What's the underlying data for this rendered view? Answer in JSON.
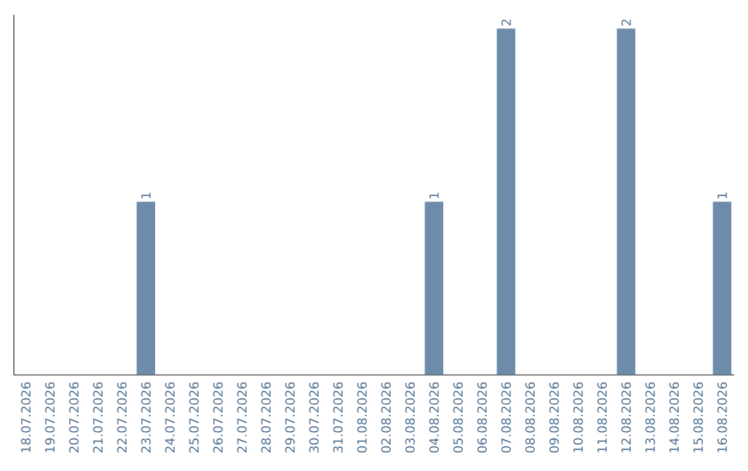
{
  "chart_data": {
    "type": "bar",
    "categories": [
      "18.07.2026",
      "19.07.2026",
      "20.07.2026",
      "21.07.2026",
      "22.07.2026",
      "23.07.2026",
      "24.07.2026",
      "25.07.2026",
      "26.07.2026",
      "27.07.2026",
      "28.07.2026",
      "29.07.2026",
      "30.07.2026",
      "31.07.2026",
      "01.08.2026",
      "02.08.2026",
      "03.08.2026",
      "04.08.2026",
      "05.08.2026",
      "06.08.2026",
      "07.08.2026",
      "08.08.2026",
      "09.08.2026",
      "10.08.2026",
      "11.08.2026",
      "12.08.2026",
      "13.08.2026",
      "14.08.2026",
      "15.08.2026",
      "16.08.2026"
    ],
    "values": [
      0,
      0,
      0,
      0,
      0,
      1,
      0,
      0,
      0,
      0,
      0,
      0,
      0,
      0,
      0,
      0,
      0,
      1,
      0,
      0,
      2,
      0,
      0,
      0,
      0,
      2,
      0,
      0,
      0,
      1
    ],
    "value_labels": [
      null,
      null,
      null,
      null,
      null,
      "1",
      null,
      null,
      null,
      null,
      null,
      null,
      null,
      null,
      null,
      null,
      null,
      "1",
      null,
      null,
      "2",
      null,
      null,
      null,
      null,
      "2",
      null,
      null,
      null,
      "1"
    ],
    "color": "#6d8ca9",
    "tick_labels": "x"
  }
}
